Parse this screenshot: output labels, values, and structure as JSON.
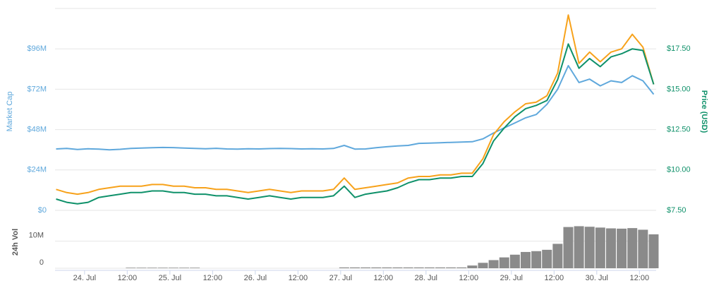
{
  "chart_data": [
    {
      "type": "line",
      "ylabel": "Market Cap",
      "y2label": "Price (USD)",
      "x": [
        -8,
        -5,
        -2,
        1,
        4,
        7,
        10,
        13,
        16,
        19,
        22,
        25,
        28,
        31,
        34,
        37,
        40,
        43,
        46,
        49,
        52,
        55,
        58,
        61,
        64,
        67,
        70,
        73,
        76,
        79,
        82,
        85,
        88,
        91,
        94,
        97,
        100,
        103,
        106,
        109,
        112,
        115,
        118,
        121,
        124,
        127,
        130,
        133,
        136,
        139,
        142,
        145,
        148,
        151,
        154,
        157,
        160
      ],
      "xlim": [
        -8.3,
        160.7
      ],
      "xticks": [
        {
          "value": 0,
          "label": "24. Jul"
        },
        {
          "value": 12,
          "label": "12:00"
        },
        {
          "value": 24,
          "label": "25. Jul"
        },
        {
          "value": 36,
          "label": "12:00"
        },
        {
          "value": 48,
          "label": "26. Jul"
        },
        {
          "value": 60,
          "label": "12:00"
        },
        {
          "value": 72,
          "label": "27. Jul"
        },
        {
          "value": 84,
          "label": "12:00"
        },
        {
          "value": 96,
          "label": "28. Jul"
        },
        {
          "value": 108,
          "label": "12:00"
        },
        {
          "value": 120,
          "label": "29. Jul"
        },
        {
          "value": 132,
          "label": "12:00"
        },
        {
          "value": 144,
          "label": "30. Jul"
        },
        {
          "value": 156,
          "label": "12:00"
        }
      ],
      "ylim": [
        0,
        120000000
      ],
      "yticks": [
        {
          "value": 0,
          "label": "$0"
        },
        {
          "value": 24000000,
          "label": "$24M"
        },
        {
          "value": 48000000,
          "label": "$48M"
        },
        {
          "value": 72000000,
          "label": "$72M"
        },
        {
          "value": 96000000,
          "label": "$96M"
        }
      ],
      "y2lim": [
        7.5,
        20
      ],
      "y2ticks": [
        {
          "value": 7.5,
          "label": "$7.50"
        },
        {
          "value": 10,
          "label": "$10.00"
        },
        {
          "value": 12.5,
          "label": "$12.50"
        },
        {
          "value": 15,
          "label": "$15.00"
        },
        {
          "value": 17.5,
          "label": "$17.50"
        }
      ],
      "grid": true,
      "series": [
        {
          "color": "#5fa8dc",
          "values": [
            36500000,
            36800000,
            36200000,
            36600000,
            36400000,
            36000000,
            36300000,
            36800000,
            37000000,
            37200000,
            37400000,
            37300000,
            37000000,
            36800000,
            36600000,
            36900000,
            36500000,
            36400000,
            36600000,
            36500000,
            36700000,
            36800000,
            36700000,
            36500000,
            36600000,
            36500000,
            36800000,
            38600000,
            36400000,
            36500000,
            37200000,
            37800000,
            38300000,
            38600000,
            39800000,
            40000000,
            40200000,
            40400000,
            40600000,
            40800000,
            42500000,
            46000000,
            49000000,
            52000000,
            55000000,
            57000000,
            63000000,
            72000000,
            86000000,
            76000000,
            78000000,
            74000000,
            77000000,
            76000000,
            80000000,
            77000000,
            69000000
          ]
        },
        {
          "color": "#f7a21b",
          "axis": "y2",
          "values": [
            8.8,
            8.6,
            8.5,
            8.6,
            8.8,
            8.9,
            9.0,
            9.0,
            9.0,
            9.1,
            9.1,
            9.0,
            9.0,
            8.9,
            8.9,
            8.8,
            8.8,
            8.7,
            8.6,
            8.7,
            8.8,
            8.7,
            8.6,
            8.7,
            8.7,
            8.7,
            8.8,
            9.5,
            8.8,
            8.9,
            9.0,
            9.1,
            9.2,
            9.5,
            9.6,
            9.6,
            9.7,
            9.7,
            9.8,
            9.8,
            10.7,
            12.2,
            13.0,
            13.6,
            14.1,
            14.2,
            14.6,
            16.0,
            19.6,
            16.6,
            17.3,
            16.7,
            17.3,
            17.5,
            18.4,
            17.6,
            15.3
          ]
        },
        {
          "color": "#0f916a",
          "axis": "y2",
          "values": [
            8.2,
            8.0,
            7.9,
            8.0,
            8.3,
            8.4,
            8.5,
            8.6,
            8.6,
            8.7,
            8.7,
            8.6,
            8.6,
            8.5,
            8.5,
            8.4,
            8.4,
            8.3,
            8.2,
            8.3,
            8.4,
            8.3,
            8.2,
            8.3,
            8.3,
            8.3,
            8.4,
            9.0,
            8.3,
            8.5,
            8.6,
            8.7,
            8.9,
            9.2,
            9.4,
            9.4,
            9.5,
            9.5,
            9.6,
            9.6,
            10.4,
            11.8,
            12.6,
            13.3,
            13.8,
            14.0,
            14.3,
            15.6,
            17.8,
            16.3,
            16.9,
            16.4,
            17.0,
            17.2,
            17.5,
            17.4,
            15.3
          ]
        }
      ]
    },
    {
      "type": "bar",
      "ylabel": "24h Vol",
      "color": "#8a8a8a",
      "ylim": [
        0,
        19000000
      ],
      "yticks": [
        0,
        {
          "value": 10000000,
          "label": "10M"
        }
      ],
      "values": [
        0,
        0,
        0,
        0,
        0,
        0,
        0,
        200000,
        200000,
        200000,
        200000,
        200000,
        200000,
        200000,
        0,
        0,
        0,
        0,
        0,
        0,
        0,
        0,
        0,
        0,
        0,
        0,
        0,
        300000,
        300000,
        300000,
        300000,
        300000,
        300000,
        300000,
        300000,
        300000,
        300000,
        300000,
        300000,
        1000000,
        2000000,
        3000000,
        4000000,
        5000000,
        6000000,
        6300000,
        6800000,
        9000000,
        15200000,
        15500000,
        15300000,
        15000000,
        14700000,
        14600000,
        14800000,
        14200000,
        12500000
      ]
    }
  ]
}
